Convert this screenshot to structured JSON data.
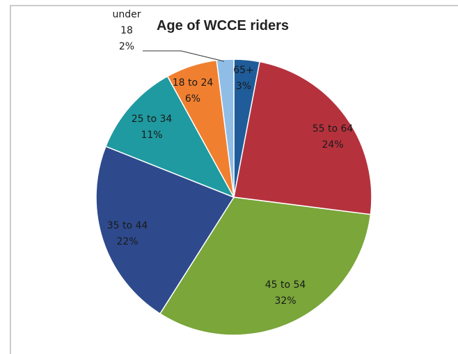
{
  "chart_data": {
    "type": "pie",
    "title": "Age of WCCE riders",
    "categories": [
      "65+",
      "55 to 64",
      "45 to 54",
      "35 to 44",
      "25 to 34",
      "18 to 24",
      "under 18"
    ],
    "values": [
      3,
      24,
      32,
      22,
      11,
      6,
      2
    ],
    "value_labels": [
      "3%",
      "24%",
      "32%",
      "22%",
      "11%",
      "6%",
      "2%"
    ],
    "colors": [
      "#1f5c99",
      "#b5323d",
      "#7aa63a",
      "#2e4a8c",
      "#1f9aa0",
      "#f08030",
      "#8fbde6"
    ]
  }
}
